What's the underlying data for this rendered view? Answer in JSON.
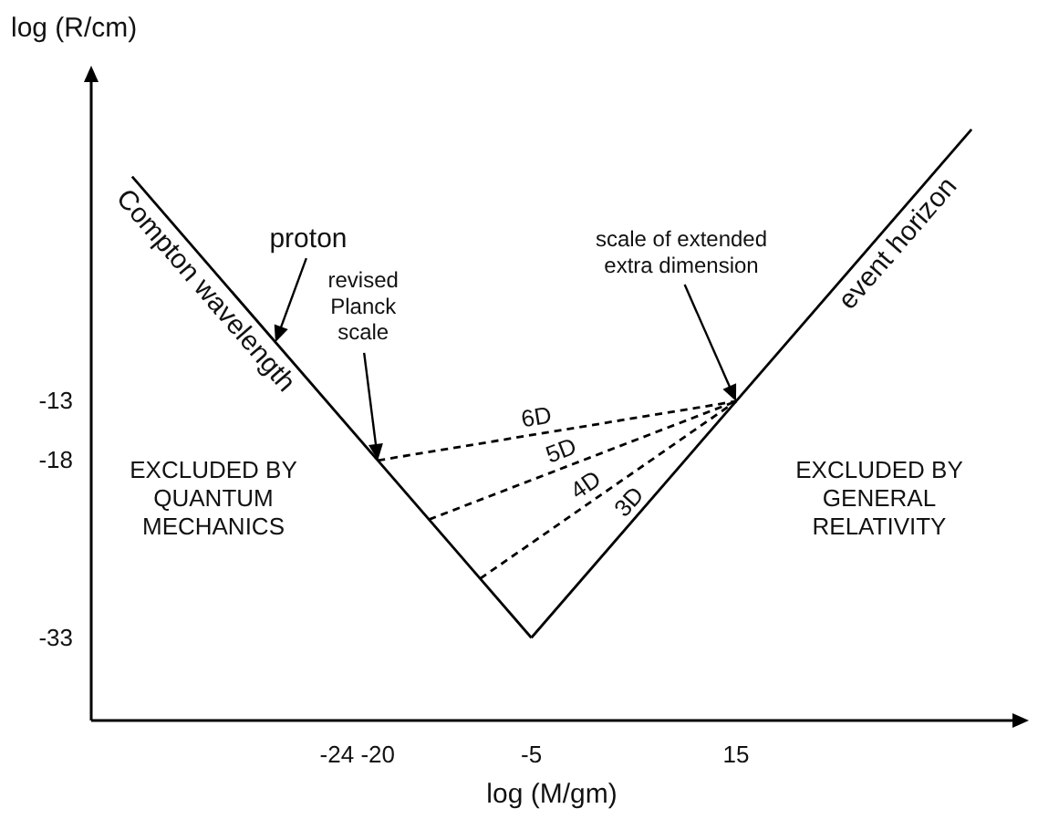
{
  "chart_data": {
    "type": "line",
    "xlabel": "log (M/gm)",
    "ylabel": "log (R/cm)",
    "xlim": [
      -48,
      42
    ],
    "ylim": [
      -40,
      14
    ],
    "xticks": [
      -24,
      -20,
      -5,
      15
    ],
    "yticks": [
      -13,
      -18,
      -33
    ],
    "grid": false,
    "legend": false,
    "marker": "none",
    "series": [
      {
        "name": "Compton wavelength",
        "color": "#000000",
        "x": [
          -44,
          -5
        ],
        "values": [
          6,
          -33
        ],
        "line_style": "solid"
      },
      {
        "name": "event horizon",
        "color": "#000000",
        "x": [
          -5,
          38
        ],
        "values": [
          -33,
          10
        ],
        "line_style": "solid"
      },
      {
        "name": "6D",
        "color": "#000000",
        "x": [
          -20,
          15
        ],
        "values": [
          -18,
          -13
        ],
        "line_style": "dashed"
      },
      {
        "name": "5D",
        "color": "#000000",
        "x": [
          -15,
          15
        ],
        "values": [
          -23,
          -13
        ],
        "line_style": "dashed"
      },
      {
        "name": "4D",
        "color": "#000000",
        "x": [
          -10,
          15
        ],
        "values": [
          -28,
          -13
        ],
        "line_style": "dashed"
      }
    ],
    "annotations": [
      {
        "text": "proton",
        "x": -30,
        "y": -8
      },
      {
        "text": "revised\nPlanck\nscale",
        "x": -20,
        "y": -18
      },
      {
        "text": "scale of extended\nextra dimension",
        "x": 15,
        "y": -13
      },
      "3D",
      "EXCLUDED BY\nQUANTUM\nMECHANICS",
      "EXCLUDED BY\nGENERAL\nRELATIVITY"
    ]
  }
}
